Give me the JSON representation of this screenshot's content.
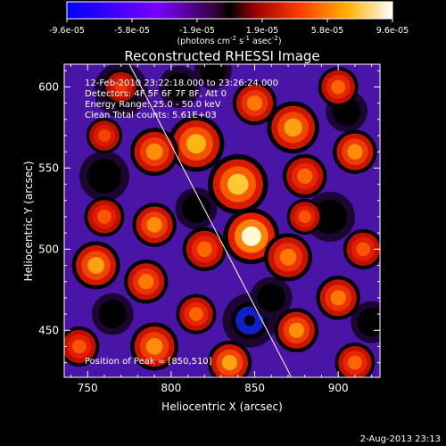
{
  "chart_data": {
    "type": "heatmap",
    "title": "Reconstructed RHESSI Image",
    "xlabel": "Heliocentric X (arcsec)",
    "ylabel": "Heliocentric Y (arcsec)",
    "xlim": [
      736,
      925
    ],
    "ylim": [
      421,
      614
    ],
    "x_ticks": [
      750,
      800,
      850,
      900
    ],
    "y_ticks": [
      450,
      500,
      550,
      600
    ],
    "colorbar": {
      "ticks": [
        "-9.6e-05",
        "-5.8e-05",
        "-1.9e-05",
        "1.9e-05",
        "5.8e-05",
        "9.6e-05"
      ],
      "range": [
        -9.6e-05,
        9.6e-05
      ],
      "units_main": "(photons cm",
      "units_sup1": "-2",
      "units_mid": " s",
      "units_sup2": "-1",
      "units_mid2": " asec",
      "units_sup3": "-2",
      "units_end": ")"
    },
    "info_lines": [
      "12-Feb-2010 23:22:18.000 to 23:26:24.000",
      "Detectors: 4F 5F 6F 7F 8F, Att 0",
      "Energy Range: 25.0 - 50.0 keV",
      "Clean     Total counts: 5.61E+03"
    ],
    "peak_label": "Position of Peak = [850,510]",
    "peak_position": [
      850,
      510
    ],
    "limb_line": [
      [
        775,
        614
      ],
      [
        872,
        421
      ]
    ],
    "hot_spots": [
      {
        "x": 848,
        "y": 508,
        "value": 9.6e-05,
        "r": 14
      },
      {
        "x": 840,
        "y": 540,
        "value": 8e-05,
        "r": 15
      },
      {
        "x": 815,
        "y": 565,
        "value": 7.5e-05,
        "r": 14
      },
      {
        "x": 790,
        "y": 560,
        "value": 6.5e-05,
        "r": 12
      },
      {
        "x": 873,
        "y": 575,
        "value": 7e-05,
        "r": 13
      },
      {
        "x": 850,
        "y": 590,
        "value": 6e-05,
        "r": 11
      },
      {
        "x": 880,
        "y": 545,
        "value": 5.5e-05,
        "r": 11
      },
      {
        "x": 910,
        "y": 560,
        "value": 6.5e-05,
        "r": 11
      },
      {
        "x": 900,
        "y": 600,
        "value": 5.5e-05,
        "r": 10
      },
      {
        "x": 870,
        "y": 495,
        "value": 6e-05,
        "r": 12
      },
      {
        "x": 820,
        "y": 500,
        "value": 5.5e-05,
        "r": 11
      },
      {
        "x": 790,
        "y": 515,
        "value": 6.5e-05,
        "r": 11
      },
      {
        "x": 760,
        "y": 520,
        "value": 5e-05,
        "r": 10
      },
      {
        "x": 755,
        "y": 490,
        "value": 7e-05,
        "r": 12
      },
      {
        "x": 785,
        "y": 480,
        "value": 6e-05,
        "r": 11
      },
      {
        "x": 745,
        "y": 440,
        "value": 5e-05,
        "r": 10
      },
      {
        "x": 790,
        "y": 440,
        "value": 6.5e-05,
        "r": 12
      },
      {
        "x": 815,
        "y": 460,
        "value": 5.5e-05,
        "r": 10
      },
      {
        "x": 835,
        "y": 430,
        "value": 7e-05,
        "r": 11
      },
      {
        "x": 875,
        "y": 450,
        "value": 6.5e-05,
        "r": 11
      },
      {
        "x": 900,
        "y": 470,
        "value": 6e-05,
        "r": 11
      },
      {
        "x": 915,
        "y": 500,
        "value": 5e-05,
        "r": 10
      },
      {
        "x": 910,
        "y": 430,
        "value": 5.5e-05,
        "r": 10
      },
      {
        "x": 770,
        "y": 600,
        "value": 4e-05,
        "r": 9
      },
      {
        "x": 760,
        "y": 570,
        "value": 4.5e-05,
        "r": 9
      },
      {
        "x": 880,
        "y": 520,
        "value": 5e-05,
        "r": 9
      }
    ],
    "cold_spots": [
      {
        "x": 770,
        "y": 598,
        "value": -9.6e-05,
        "r": 13
      },
      {
        "x": 847,
        "y": 456,
        "value": -9e-05,
        "r": 13
      },
      {
        "x": 895,
        "y": 520,
        "value": -5e-05,
        "r": 12
      },
      {
        "x": 760,
        "y": 545,
        "value": -4.5e-05,
        "r": 12
      },
      {
        "x": 815,
        "y": 525,
        "value": -4e-05,
        "r": 10
      },
      {
        "x": 805,
        "y": 600,
        "value": -4e-05,
        "r": 10
      },
      {
        "x": 905,
        "y": 585,
        "value": -4e-05,
        "r": 10
      },
      {
        "x": 860,
        "y": 470,
        "value": -5.5e-05,
        "r": 10
      },
      {
        "x": 765,
        "y": 460,
        "value": -4e-05,
        "r": 10
      },
      {
        "x": 920,
        "y": 455,
        "value": -4.5e-05,
        "r": 10
      },
      {
        "x": 825,
        "y": 610,
        "value": -3e-05,
        "r": 9
      }
    ]
  },
  "footer": {
    "timestamp": "2-Aug-2013 23:13"
  }
}
